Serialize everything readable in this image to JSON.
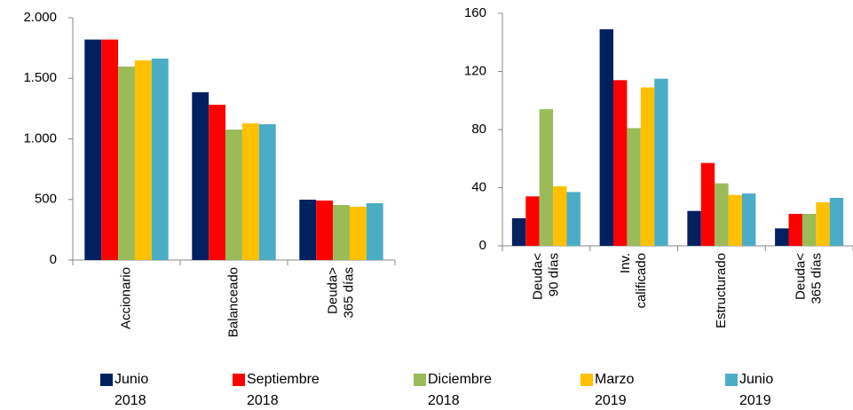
{
  "chart_data": [
    {
      "type": "bar",
      "categories": [
        [
          "Accionario"
        ],
        [
          "Balanceado"
        ],
        [
          "Deuda>",
          "365 días"
        ]
      ],
      "series": [
        {
          "name": "Junio 2018",
          "color": "#002060",
          "values": [
            1820,
            1385,
            498
          ]
        },
        {
          "name": "Septiembre 2018",
          "color": "#ff0000",
          "values": [
            1820,
            1282,
            491
          ]
        },
        {
          "name": "Diciembre 2018",
          "color": "#9bbb59",
          "values": [
            1597,
            1077,
            454
          ]
        },
        {
          "name": "Marzo 2019",
          "color": "#ffc000",
          "values": [
            1648,
            1128,
            440
          ]
        },
        {
          "name": "Junio 2019",
          "color": "#4bacc6",
          "values": [
            1663,
            1121,
            469
          ]
        }
      ],
      "ylim": [
        0,
        2000
      ],
      "yticks": [
        0,
        500,
        {
          "value": 1000,
          "label": "1.000"
        },
        {
          "value": 1500,
          "label": "1.500"
        },
        {
          "value": 2000,
          "label": "2.000"
        }
      ]
    },
    {
      "type": "bar",
      "categories": [
        [
          "Deuda<",
          "90 días"
        ],
        [
          "Inv.",
          "calificado"
        ],
        [
          "Estructurado"
        ],
        [
          "Deuda<",
          "365 días"
        ]
      ],
      "series": [
        {
          "name": "Junio 2018",
          "color": "#002060",
          "values": [
            19,
            149,
            24,
            12
          ]
        },
        {
          "name": "Septiembre 2018",
          "color": "#ff0000",
          "values": [
            34,
            114,
            57,
            22
          ]
        },
        {
          "name": "Diciembre 2018",
          "color": "#9bbb59",
          "values": [
            94,
            81,
            43,
            22
          ]
        },
        {
          "name": "Marzo 2019",
          "color": "#ffc000",
          "values": [
            41,
            109,
            35,
            30
          ]
        },
        {
          "name": "Junio 2019",
          "color": "#4bacc6",
          "values": [
            37,
            115,
            36,
            33
          ]
        }
      ],
      "ylim": [
        0,
        160
      ],
      "yticks": [
        0,
        40,
        80,
        120,
        160
      ]
    }
  ]
}
